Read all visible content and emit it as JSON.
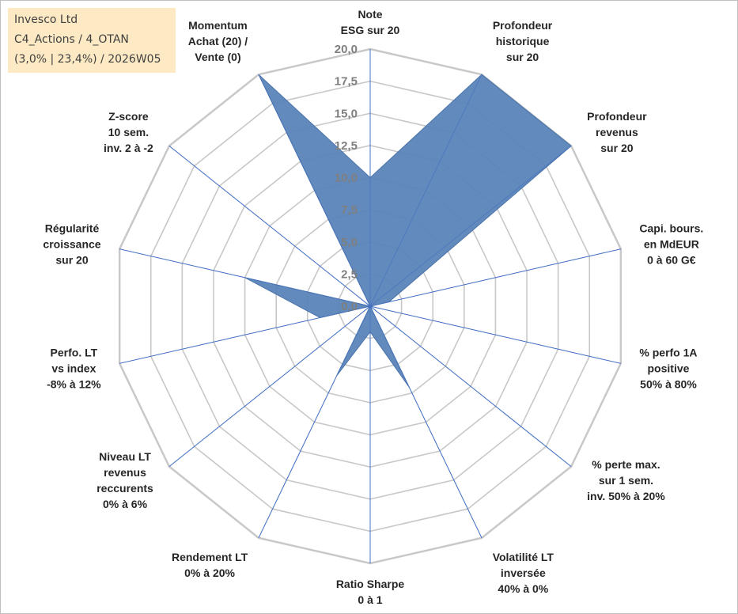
{
  "info": {
    "company": "Invesco Ltd",
    "category": "C4_Actions / 4_OTAN",
    "stats": "(3,0% | 23,4%) / 2026W05"
  },
  "colors": {
    "fill": "#5b84b8",
    "fill_stroke": "#4a74ab",
    "grid": "#c8c8c8",
    "spoke": "#4472c4",
    "info_bg": "#fde9c3"
  },
  "chart_data": {
    "type": "radar",
    "title": "",
    "rmin": 0,
    "rmax": 20,
    "ticks": [
      "0,0",
      "2,5",
      "5,0",
      "7,5",
      "10,0",
      "12,5",
      "15,0",
      "17,5",
      "20,0"
    ],
    "axes": [
      [
        "Note",
        "ESG sur 20"
      ],
      [
        "Profondeur",
        "historique",
        "sur 20"
      ],
      [
        "Profondeur",
        "revenus",
        "sur 20"
      ],
      [
        "Capi. bours.",
        "en MdEUR",
        "0 à 60 G€"
      ],
      [
        "% perfo 1A",
        "positive",
        "50% à 80%"
      ],
      [
        "% perte max.",
        "sur 1 sem.",
        "inv. 50% à 20%"
      ],
      [
        "Volatilité LT",
        "inversée",
        "40% à 0%"
      ],
      [
        "Ratio Sharpe",
        "0 à 1"
      ],
      [
        "Rendement LT",
        "0% à 20%"
      ],
      [
        "Niveau LT",
        "revenus",
        "reccurents",
        "0% à 6%"
      ],
      [
        "Perfo. LT",
        "vs index",
        "-8% à 12%"
      ],
      [
        "Régularité",
        "croissance",
        "sur 20"
      ],
      [
        "Z-score",
        "10 sem.",
        "inv. 2 à -2"
      ],
      [
        "Momentum",
        "Achat (20) /",
        "Vente (0)"
      ]
    ],
    "series": [
      {
        "name": "Invesco Ltd",
        "values": [
          10,
          20,
          20,
          1.5,
          0,
          0,
          7,
          2,
          6,
          0,
          4,
          10,
          0,
          20
        ]
      }
    ]
  }
}
